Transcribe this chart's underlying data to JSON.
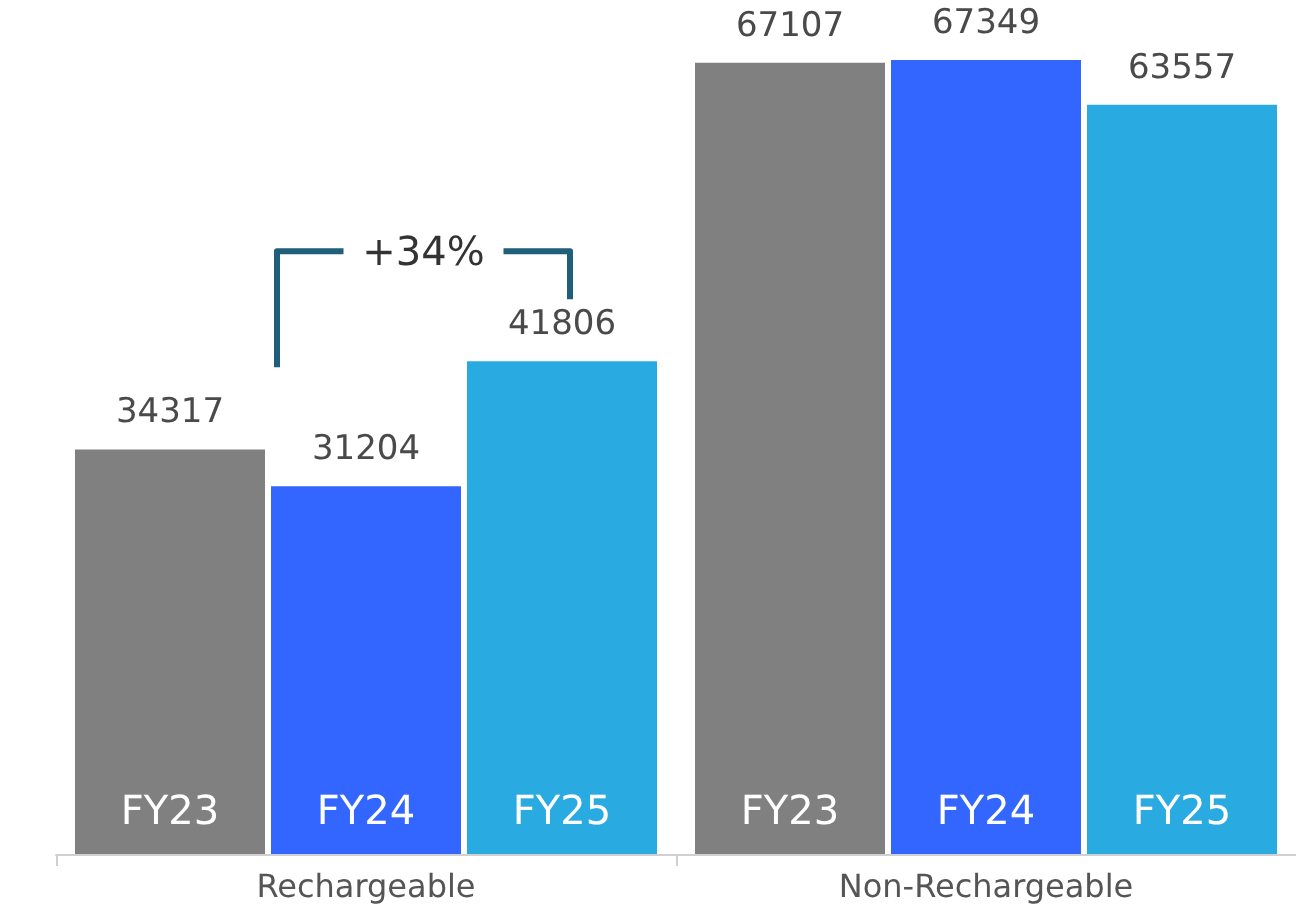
{
  "chart_data": {
    "type": "bar",
    "categories": [
      "Rechargeable",
      "Non-Rechargeable"
    ],
    "series": [
      {
        "name": "FY23",
        "color": "#808080",
        "values": [
          34317,
          67107
        ]
      },
      {
        "name": "FY24",
        "color": "#3366ff",
        "values": [
          31204,
          67349
        ]
      },
      {
        "name": "FY25",
        "color": "#29abe2",
        "values": [
          41806,
          63557
        ]
      }
    ],
    "data_labels": true,
    "annotations": [
      "+34%"
    ]
  }
}
